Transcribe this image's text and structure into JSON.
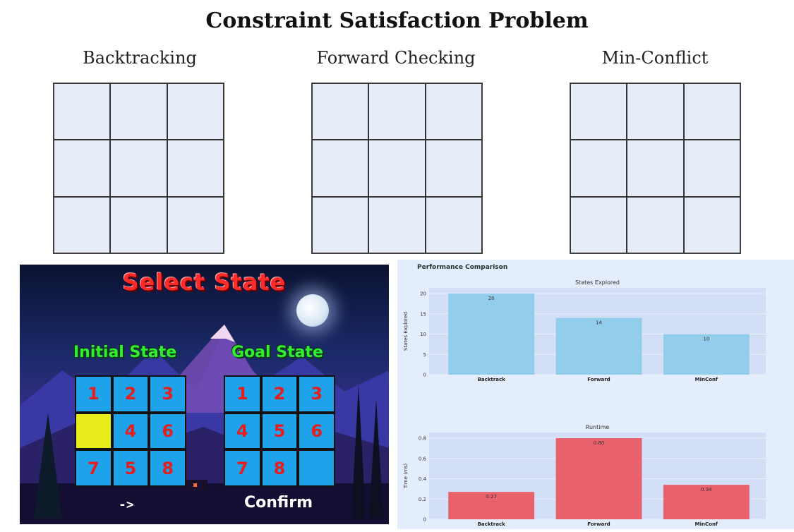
{
  "title": "Constraint Satisfaction Problem",
  "boards": [
    {
      "label": "Backtracking"
    },
    {
      "label": "Forward Checking"
    },
    {
      "label": "Min-Conflict"
    }
  ],
  "game": {
    "title": "Select State",
    "initial_label": "Initial State",
    "goal_label": "Goal State",
    "initial_tiles": [
      "1",
      "2",
      "3",
      "",
      "4",
      "6",
      "7",
      "5",
      "8"
    ],
    "goal_tiles": [
      "1",
      "2",
      "3",
      "4",
      "5",
      "6",
      "7",
      "8",
      ""
    ],
    "selected_index": 3,
    "nav_arrow": "->",
    "confirm_label": "Confirm"
  },
  "performance": {
    "title": "Performance Comparison",
    "chart_data": [
      {
        "type": "bar",
        "title": "States Explored",
        "ylabel": "States Explored",
        "categories": [
          "Backtrack",
          "Forward",
          "MinConf"
        ],
        "values": [
          20,
          14,
          10
        ],
        "data_labels": [
          "20",
          "14",
          "10"
        ],
        "ylim": [
          0,
          20
        ],
        "yticks": [
          0,
          5,
          10,
          15,
          20
        ],
        "ytick_labels": [
          "0",
          "5",
          "10",
          "15",
          "20"
        ],
        "color": "#93cdec"
      },
      {
        "type": "bar",
        "title": "Runtime",
        "ylabel": "Time (ms)",
        "categories": [
          "Backtrack",
          "Forward",
          "MinConf"
        ],
        "values": [
          0.27,
          0.8,
          0.34
        ],
        "data_labels": [
          "0.27",
          "0.80",
          "0.34"
        ],
        "ylim": [
          0,
          0.8
        ],
        "yticks": [
          0,
          0.2,
          0.4,
          0.6,
          0.8
        ],
        "ytick_labels": [
          "0",
          "0.2",
          "0.4",
          "0.6",
          "0.8"
        ],
        "color": "#e8616c"
      }
    ]
  }
}
